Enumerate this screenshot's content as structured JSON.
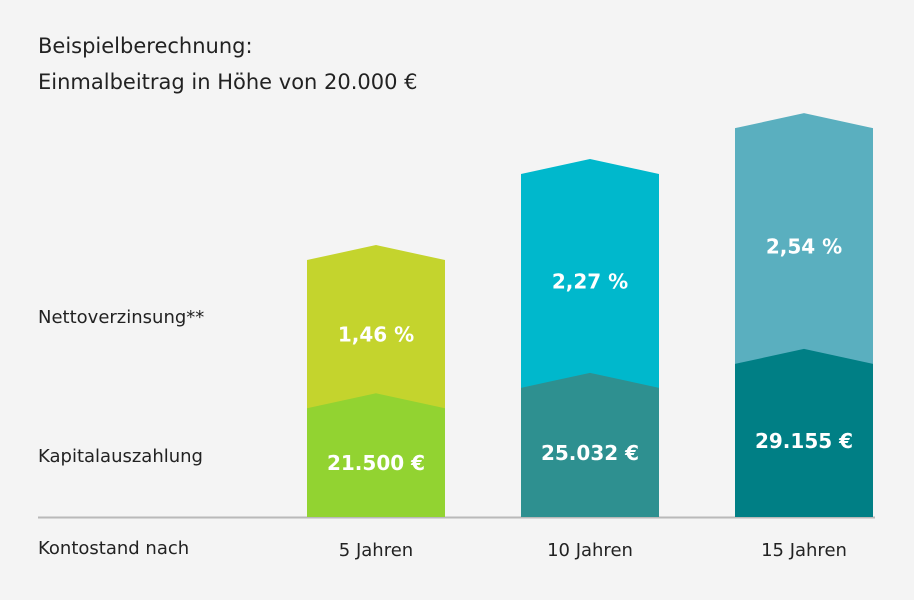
{
  "title_line1": "Beispielberechnung:",
  "title_line2": "Einmalbeitrag in Höhe von 20.000 €",
  "labels": {
    "top_series": "Nettoverzinsung**",
    "bottom_series": "Kapitalauszahlung",
    "x_axis": "Kontostand nach"
  },
  "chart_data": {
    "type": "bar",
    "categories": [
      "5 Jahren",
      "10 Jahren",
      "15 Jahren"
    ],
    "series": [
      {
        "name": "Kapitalauszahlung",
        "values": [
          21500,
          25032,
          29155
        ],
        "labels": [
          "21.500 €",
          "25.032 €",
          "29.155 €"
        ],
        "colors": [
          "#92d331",
          "#2e9090",
          "#007f85"
        ]
      },
      {
        "name": "Nettoverzinsung**",
        "values": [
          1.46,
          2.27,
          2.54
        ],
        "labels": [
          "1,46 %",
          "2,27 %",
          "2,54 %"
        ],
        "colors": [
          "#c4d42d",
          "#00b8cc",
          "#5aafbf"
        ]
      }
    ],
    "stacked": true,
    "legend": "left",
    "grid": false
  },
  "colors": {
    "background": "#f4f4f4",
    "axis": "#b9b9b9",
    "bar_label": "#ffffff"
  }
}
